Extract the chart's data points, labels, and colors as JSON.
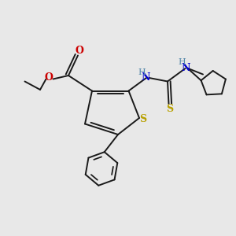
{
  "bg_color": "#e8e8e8",
  "bond_color": "#1a1a1a",
  "bond_lw": 1.4,
  "S_color": "#b8a000",
  "O_color": "#cc0000",
  "N_color": "#0000cc",
  "NH_color": "#5588aa",
  "fig_w": 3.0,
  "fig_h": 3.0,
  "dpi": 100,
  "xlim": [
    0,
    10
  ],
  "ylim": [
    0,
    10
  ]
}
